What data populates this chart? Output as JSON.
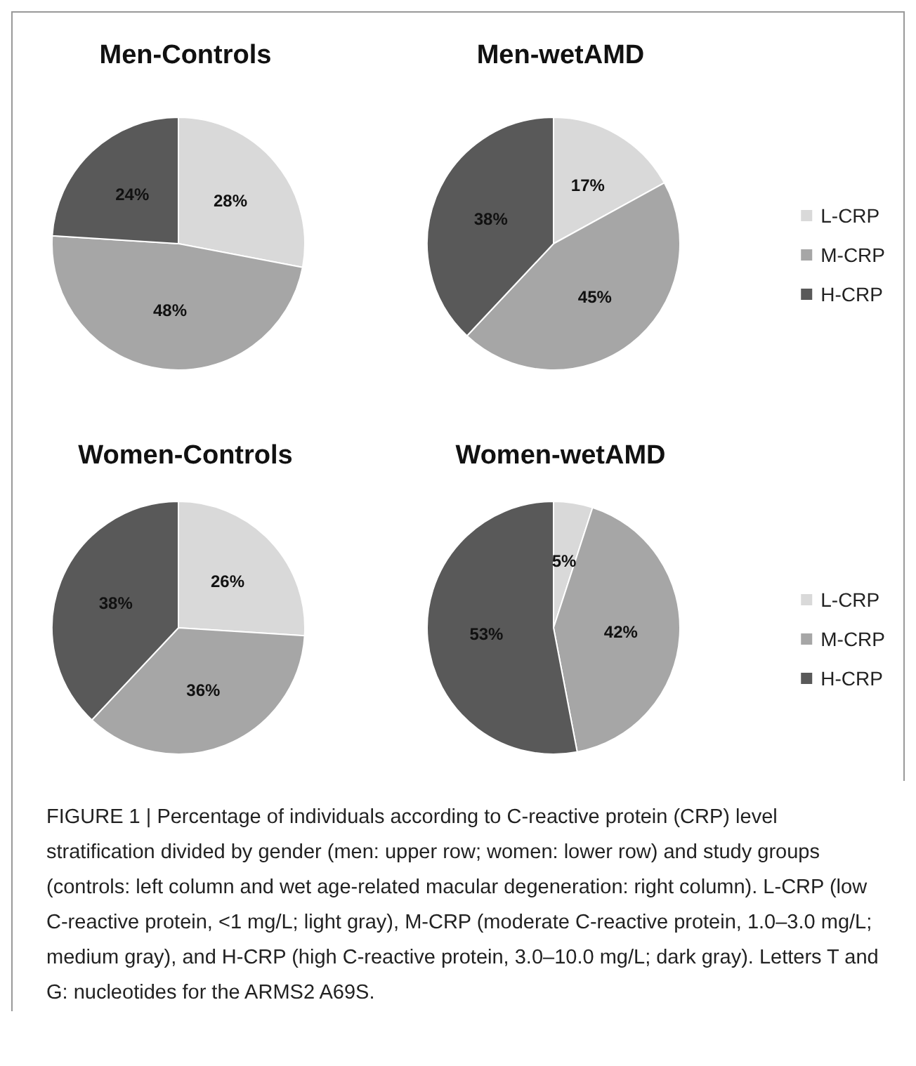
{
  "chart_data": [
    {
      "type": "pie",
      "categories": [
        "L-CRP",
        "M-CRP",
        "H-CRP"
      ],
      "colors": [
        "#d9d9d9",
        "#a6a6a6",
        "#595959"
      ],
      "legend": "right",
      "series": [
        {
          "name": "Men-Controls",
          "values": [
            28,
            48,
            24
          ],
          "value_labels": [
            "28%",
            "48%",
            "24%"
          ]
        },
        {
          "name": "Men-wetAMD",
          "values": [
            17,
            45,
            38
          ],
          "value_labels": [
            "17%",
            "45%",
            "38%"
          ]
        }
      ]
    },
    {
      "type": "pie",
      "categories": [
        "L-CRP",
        "M-CRP",
        "H-CRP"
      ],
      "colors": [
        "#d9d9d9",
        "#a6a6a6",
        "#595959"
      ],
      "legend": "right",
      "series": [
        {
          "name": "Women-Controls",
          "values": [
            26,
            36,
            38
          ],
          "value_labels": [
            "26%",
            "36%",
            "38%"
          ]
        },
        {
          "name": "Women-wetAMD",
          "values": [
            5,
            42,
            53
          ],
          "value_labels": [
            "5%",
            "42%",
            "53%"
          ]
        }
      ],
      "annotations": [
        "FIGURE 1 | Percentage of individuals according to C-reactive protein (CRP) level stratification divided by gender (men: upper row; women: lower row) and study groups (controls: left column and wet age-related macular degeneration: right column). L-CRP (low C-reactive protein, <1 mg/L; light gray), M-CRP (moderate C-reactive protein, 1.0–3.0 mg/L; medium gray), and H-CRP (high C-reactive protein, 3.0–10.0 mg/L; dark gray). Letters T and G: nucleotides for the ARMS2 A69S."
      ]
    }
  ]
}
